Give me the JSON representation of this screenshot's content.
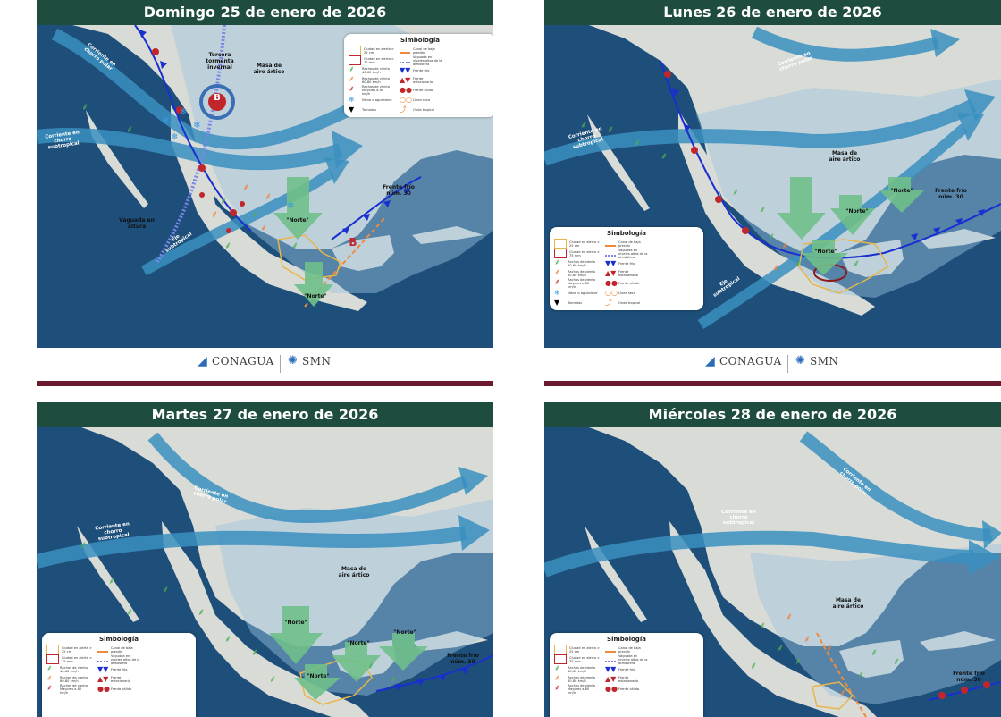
{
  "panels": [
    {
      "title": "Domingo 25 de enero de 2026",
      "labels": {
        "tormenta": "Tercera tormenta invernal",
        "aire": "Masa de aire ártico",
        "polar": "Corriente en chorro polar",
        "subtropical": "Corriente en chorro subtropical",
        "vaguada": "Vaguada en altura",
        "eje": "Eje subtropical",
        "frente": "Frente frío núm. 30",
        "norte1": "\"Norte\"",
        "norte2": "\"Norte\"",
        "low1": "B",
        "low2": "B"
      },
      "legend": {
        "title": "Simbología",
        "items": [
          "Ciudad en alerta > 25 cm",
          "Ciudad en alerta > 75 mm",
          "Rachas de viento 40-60 km/h",
          "Rachas de viento 60-80 km/h",
          "Rachas de viento Mayores a 80 km/h",
          "Nieve o aguanieve",
          "Tornados",
          "Canal de baja presión",
          "Vaguada en niveles altos de la atmósfera",
          "Frente frío",
          "Frente estacionario",
          "Frente cálido",
          "Línea seca",
          "Onda tropical"
        ]
      }
    },
    {
      "title": "Lunes 26 de enero de 2026",
      "labels": {
        "polar": "Corriente en chorro polar",
        "subtropical": "Corriente en chorro subtropical",
        "aire": "Masa de aire ártico",
        "frente": "Frente frío núm. 30",
        "eje": "Eje subtropical",
        "norte1": "\"Norte\"",
        "norte2": "\"Norte\"",
        "norte3": "\"Norte\""
      },
      "legend": {
        "title": "Simbología",
        "items": [
          "Ciudad en alerta > 25 cm",
          "Ciudad en alerta > 75 mm",
          "Rachas de viento 40-60 km/h",
          "Rachas de viento 60-80 km/h",
          "Rachas de viento Mayores a 80 km/h",
          "Nieve o aguanieve",
          "Tornados",
          "Canal de baja presión",
          "Vaguada en niveles altos de la atmósfera",
          "Frente frío",
          "Frente estacionario",
          "Frente cálido",
          "Línea seca",
          "Onda tropical"
        ]
      }
    },
    {
      "title": "Martes 27 de enero de 2026",
      "labels": {
        "polar": "Corriente en chorro polar",
        "subtropical": "Corriente en chorro subtropical",
        "aire": "Masa de aire ártico",
        "frente": "Frente frío núm. 30",
        "norte1": "\"Norte\"",
        "norte2": "\"Norte\"",
        "norte3": "\"Norte\"",
        "norte4": "\"Norte\""
      },
      "legend": {
        "title": "Simbología",
        "items": [
          "Ciudad en alerta > 25 cm",
          "Ciudad en alerta > 75 mm",
          "Rachas de viento 40-60 km/h",
          "Rachas de viento 60-80 km/h",
          "Rachas de viento Mayores a 80 km/h",
          "Canal de baja presión",
          "Vaguada en niveles altos de la atmósfera",
          "Frente frío",
          "Frente estacionario",
          "Frente cálido"
        ]
      }
    },
    {
      "title": "Miércoles 28 de enero de 2026",
      "labels": {
        "polar": "Corriente en chorro polar",
        "subtropical": "Corriente en chorro subtropical",
        "aire": "Masa de aire ártico",
        "frente": "Frente frío núm. 30"
      },
      "legend": {
        "title": "Simbología",
        "items": [
          "Ciudad en alerta > 25 cm",
          "Ciudad en alerta > 75 mm",
          "Rachas de viento 40-60 km/h",
          "Rachas de viento 60-80 km/h",
          "Rachas de viento Mayores a 80 km/h",
          "Canal de baja presión",
          "Vaguada en niveles altos de la atmósfera",
          "Frente frío",
          "Frente estacionario",
          "Frente cálido"
        ]
      }
    }
  ],
  "footer": {
    "conagua": "CONAGUA",
    "smn": "SMN"
  },
  "colors": {
    "header": "#1e4d3f",
    "ocean": "#1d4f7a",
    "land": "#d9dcd6",
    "jet": "#3a8fc0",
    "airmass": "#9ec4e0",
    "cold_front": "#1a2fd0",
    "warm_front": "#c0262b",
    "norte": "#6fbf8a",
    "alert": "#e8b54a",
    "footer_bar": "#6b1a2e"
  }
}
